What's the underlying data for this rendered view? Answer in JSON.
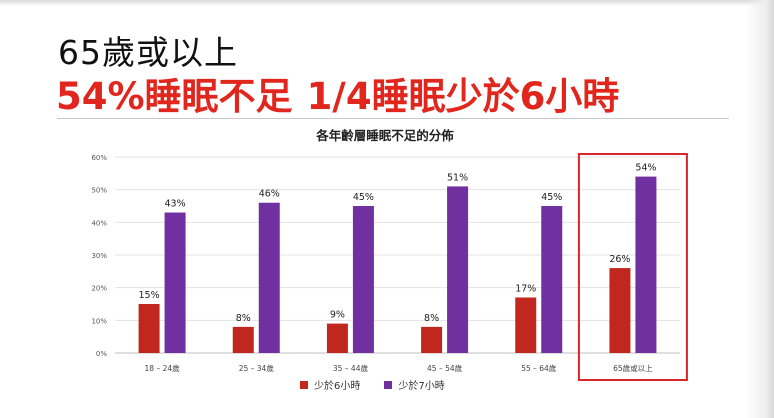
{
  "slide": {
    "headline_line1": "65歲或以上",
    "headline_line2_part1": "54%睡眠不足",
    "headline_line2_part2": "1/4睡眠少於6小時"
  },
  "colors": {
    "accent_red": "#e0261d",
    "series_short_sleep": "#c0281f",
    "series_under7": "#7030a0",
    "highlight_box": "#d9262a"
  },
  "chart_data": {
    "type": "bar",
    "title": "各年齡層睡眠不足的分佈",
    "categories": [
      "18 – 24歲",
      "25 – 34歲",
      "35 – 44歲",
      "45 – 54歲",
      "55 – 64歲",
      "65歲或以上"
    ],
    "series": [
      {
        "name": "少於6小時",
        "values": [
          15,
          8,
          9,
          8,
          17,
          26
        ],
        "labels": [
          "15%",
          "8%",
          "9%",
          "8%",
          "17%",
          "26%"
        ]
      },
      {
        "name": "少於7小時",
        "values": [
          43,
          46,
          45,
          51,
          45,
          54
        ],
        "labels": [
          "43%",
          "46%",
          "45%",
          "51%",
          "45%",
          "54%"
        ]
      }
    ],
    "ylim": [
      0,
      60
    ],
    "yticks": [
      "0%",
      "10%",
      "20%",
      "30%",
      "40%",
      "50%",
      "60%"
    ],
    "grid": true,
    "legend_position": "bottom",
    "highlighted_category": "65歲或以上"
  }
}
